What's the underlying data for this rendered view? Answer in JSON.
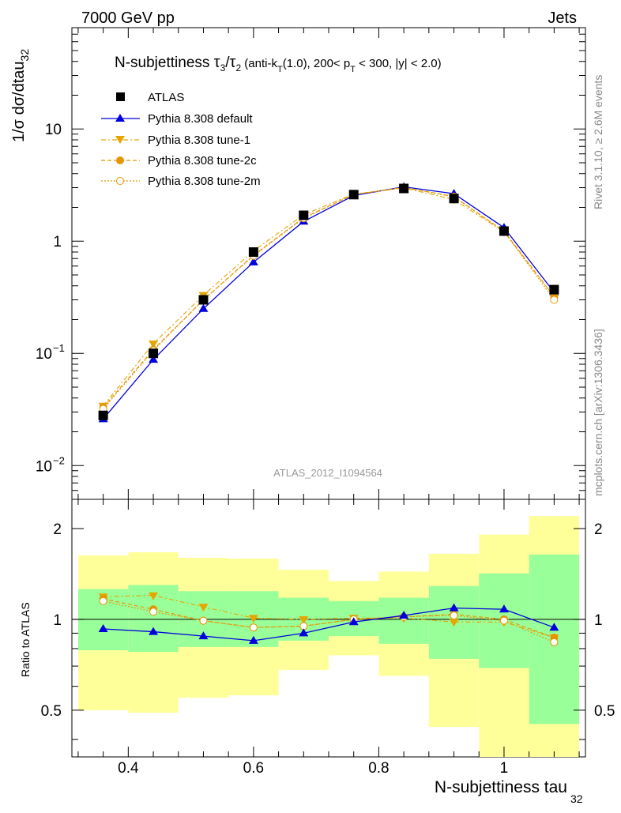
{
  "header": {
    "left": "7000 GeV pp",
    "right": "Jets",
    "side_top": "Rivet 3.1.10, ≥ 2.6M events",
    "side_bottom": "mcplots.cern.ch [arXiv:1306.3436]"
  },
  "title": {
    "main": "N-subjettiness ",
    "t1": "τ",
    "t1sub": "3",
    "slash": "/",
    "t2": "τ",
    "t2sub": "2",
    "cut1": " (anti-k",
    "cut1sub": "T",
    "cut2": "(1.0), 200< p",
    "cut2sub": "T",
    "cut3": " < 300, |y| < 2.0)"
  },
  "watermark": "ATLAS_2012_I1094564",
  "axes": {
    "ylabel_main": "1/σ dσ/dtau",
    "ylabel_main_sub": "32",
    "ylabel_ratio": "Ratio to ATLAS",
    "xlabel": "N-subjettiness tau",
    "xlabel_sub": "32",
    "x_ticks": [
      "0.4",
      "0.6",
      "0.8",
      "1"
    ],
    "y_ticks_main": [
      {
        "base": "10",
        "exp": "−2"
      },
      {
        "base": "10",
        "exp": "−1"
      },
      {
        "base": "1",
        "exp": ""
      },
      {
        "base": "10",
        "exp": ""
      }
    ],
    "y_ticks_ratio": [
      "0.5",
      "1",
      "2"
    ]
  },
  "colors": {
    "atlas": "#000000",
    "default": "#0000dd",
    "tune1": "#e6a600",
    "tune2c": "#e69500",
    "tune2m": "#e69500",
    "band_inner": "#99ff99",
    "band_outer": "#ffff99"
  },
  "chart_data": [
    {
      "type": "line",
      "scale": "log",
      "xlim": [
        0.31,
        1.13
      ],
      "ylim": [
        0.005,
        80
      ],
      "x": [
        0.36,
        0.44,
        0.52,
        0.6,
        0.68,
        0.76,
        0.84,
        0.92,
        1.0,
        1.08
      ],
      "series": [
        {
          "name": "ATLAS",
          "marker": "square",
          "values": [
            0.028,
            0.1,
            0.3,
            0.8,
            1.7,
            2.6,
            2.95,
            2.4,
            1.23,
            0.37
          ]
        },
        {
          "name": "Pythia 8.308 default",
          "marker": "triangle",
          "values": [
            0.026,
            0.088,
            0.25,
            0.65,
            1.5,
            2.55,
            3.05,
            2.65,
            1.32,
            0.35
          ]
        },
        {
          "name": "Pythia 8.308 tune-1",
          "marker": "triangle-down",
          "values": [
            0.034,
            0.122,
            0.33,
            0.82,
            1.72,
            2.63,
            2.98,
            2.35,
            1.21,
            0.32
          ]
        },
        {
          "name": "Pythia 8.308 tune-2c",
          "marker": "circle",
          "values": [
            0.033,
            0.108,
            0.3,
            0.75,
            1.62,
            2.6,
            3.02,
            2.5,
            1.23,
            0.32
          ]
        },
        {
          "name": "Pythia 8.308 tune-2m",
          "marker": "circle-open",
          "values": [
            0.032,
            0.106,
            0.3,
            0.74,
            1.6,
            2.6,
            3.0,
            2.48,
            1.22,
            0.3
          ]
        }
      ]
    },
    {
      "type": "line",
      "scale": "log",
      "xlim": [
        0.31,
        1.13
      ],
      "ylim": [
        0.35,
        2.5
      ],
      "x": [
        0.36,
        0.44,
        0.52,
        0.6,
        0.68,
        0.76,
        0.84,
        0.92,
        1.0,
        1.08
      ],
      "bins": [
        [
          0.32,
          0.4
        ],
        [
          0.4,
          0.48
        ],
        [
          0.48,
          0.56
        ],
        [
          0.56,
          0.64
        ],
        [
          0.64,
          0.72
        ],
        [
          0.72,
          0.8
        ],
        [
          0.8,
          0.88
        ],
        [
          0.88,
          0.96
        ],
        [
          0.96,
          1.04
        ],
        [
          1.04,
          1.12
        ]
      ],
      "band_inner": [
        [
          0.79,
          1.26
        ],
        [
          0.78,
          1.3
        ],
        [
          0.81,
          1.24
        ],
        [
          0.81,
          1.24
        ],
        [
          0.85,
          1.18
        ],
        [
          0.88,
          1.15
        ],
        [
          0.83,
          1.18
        ],
        [
          0.74,
          1.29
        ],
        [
          0.69,
          1.42
        ],
        [
          0.45,
          1.64
        ]
      ],
      "band_outer": [
        [
          0.5,
          1.63
        ],
        [
          0.49,
          1.67
        ],
        [
          0.55,
          1.6
        ],
        [
          0.56,
          1.59
        ],
        [
          0.68,
          1.46
        ],
        [
          0.76,
          1.34
        ],
        [
          0.65,
          1.44
        ],
        [
          0.44,
          1.65
        ],
        [
          0.34,
          1.91
        ],
        [
          0.34,
          2.2
        ]
      ],
      "series": [
        {
          "name": "Pythia 8.308 default",
          "values": [
            0.93,
            0.91,
            0.88,
            0.85,
            0.9,
            0.98,
            1.03,
            1.09,
            1.08,
            0.94
          ]
        },
        {
          "name": "Pythia 8.308 tune-1",
          "values": [
            1.19,
            1.2,
            1.1,
            1.01,
            1.0,
            1.01,
            1.01,
            0.98,
            0.98,
            0.87
          ]
        },
        {
          "name": "Pythia 8.308 tune-2c",
          "values": [
            1.17,
            1.08,
            0.99,
            0.94,
            0.95,
            1.0,
            1.02,
            1.04,
            1.0,
            0.87
          ]
        },
        {
          "name": "Pythia 8.308 tune-2m",
          "values": [
            1.15,
            1.06,
            0.99,
            0.94,
            0.95,
            1.0,
            1.02,
            1.03,
            0.99,
            0.84
          ]
        }
      ]
    }
  ]
}
